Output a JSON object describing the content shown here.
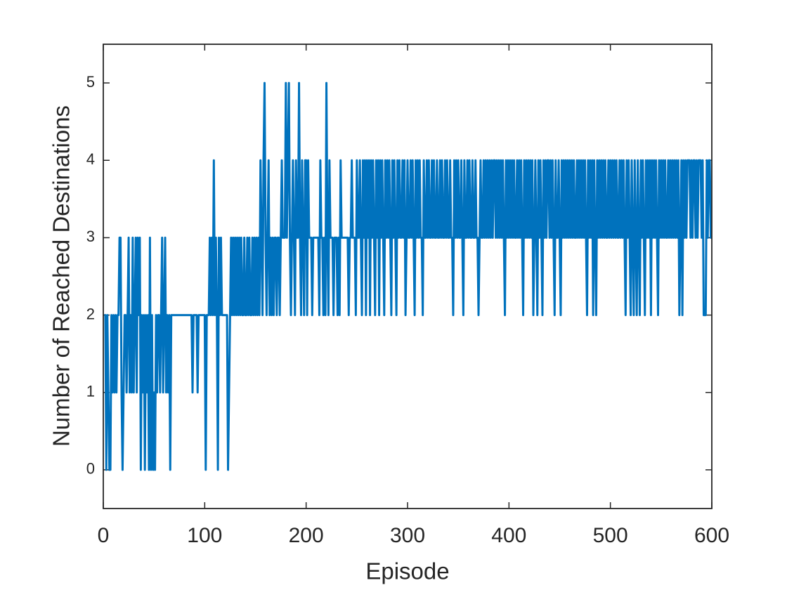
{
  "chart_data": {
    "type": "line",
    "x_label": "Episode",
    "y_label": "Number of Reached Destinations",
    "xlim": [
      0,
      600
    ],
    "xticks": [
      0,
      100,
      200,
      300,
      400,
      500,
      600
    ],
    "ylim": [
      -0.5,
      5.5
    ],
    "yticks": [
      0,
      1,
      2,
      3,
      4,
      5
    ],
    "grid": false,
    "box": true,
    "series": [
      {
        "color": "#0072bd",
        "x": [
          1,
          2,
          3,
          4,
          5,
          6,
          7,
          8,
          9,
          10,
          11,
          12,
          13,
          14,
          15,
          16,
          17,
          18,
          19,
          20,
          21,
          22,
          23,
          24,
          25,
          26,
          27,
          28,
          29,
          30,
          31,
          32,
          33,
          34,
          35,
          36,
          37,
          38,
          39,
          40,
          41,
          42,
          43,
          44,
          45,
          46,
          47,
          48,
          49,
          50,
          51,
          52,
          53,
          54,
          55,
          56,
          57,
          58,
          59,
          60,
          61,
          62,
          63,
          64,
          65,
          66,
          67,
          68,
          69,
          70,
          71,
          72,
          73,
          74,
          75,
          76,
          77,
          78,
          79,
          80,
          81,
          82,
          83,
          84,
          85,
          86,
          87,
          88,
          89,
          90,
          91,
          92,
          93,
          94,
          95,
          96,
          97,
          98,
          99,
          100,
          101,
          102,
          103,
          104,
          105,
          106,
          107,
          108,
          109,
          110,
          111,
          112,
          113,
          114,
          115,
          116,
          117,
          118,
          119,
          120,
          121,
          122,
          123,
          124,
          125,
          126,
          127,
          128,
          129,
          130,
          131,
          132,
          133,
          134,
          135,
          136,
          137,
          138,
          139,
          140,
          141,
          142,
          143,
          144,
          145,
          146,
          147,
          148,
          149,
          150,
          151,
          152,
          153,
          154,
          155,
          156,
          157,
          158,
          159,
          160,
          161,
          162,
          163,
          164,
          165,
          166,
          167,
          168,
          169,
          170,
          171,
          172,
          173,
          174,
          175,
          176,
          177,
          178,
          179,
          180,
          181,
          182,
          183,
          184,
          185,
          186,
          187,
          188,
          189,
          190,
          191,
          192,
          193,
          194,
          195,
          196,
          197,
          198,
          199,
          200,
          201,
          202,
          203,
          204,
          205,
          206,
          207,
          208,
          209,
          210,
          211,
          212,
          213,
          214,
          215,
          216,
          217,
          218,
          219,
          220,
          221,
          222,
          223,
          224,
          225,
          226,
          227,
          228,
          229,
          230,
          231,
          232,
          233,
          234,
          235,
          236,
          237,
          238,
          239,
          240,
          241,
          242,
          243,
          244,
          245,
          246,
          247,
          248,
          249,
          250,
          251,
          252,
          253,
          254,
          255,
          256,
          257,
          258,
          259,
          260,
          261,
          262,
          263,
          264,
          265,
          266,
          267,
          268,
          269,
          270,
          271,
          272,
          273,
          274,
          275,
          276,
          277,
          278,
          279,
          280,
          281,
          282,
          283,
          284,
          285,
          286,
          287,
          288,
          289,
          290,
          291,
          292,
          293,
          294,
          295,
          296,
          297,
          298,
          299,
          300,
          301,
          302,
          303,
          304,
          305,
          306,
          307,
          308,
          309,
          310,
          311,
          312,
          313,
          314,
          315,
          316,
          317,
          318,
          319,
          320,
          321,
          322,
          323,
          324,
          325,
          326,
          327,
          328,
          329,
          330,
          331,
          332,
          333,
          334,
          335,
          336,
          337,
          338,
          339,
          340,
          341,
          342,
          343,
          344,
          345,
          346,
          347,
          348,
          349,
          350,
          351,
          352,
          353,
          354,
          355,
          356,
          357,
          358,
          359,
          360,
          361,
          362,
          363,
          364,
          365,
          366,
          367,
          368,
          369,
          370,
          371,
          372,
          373,
          374,
          375,
          376,
          377,
          378,
          379,
          380,
          381,
          382,
          383,
          384,
          385,
          386,
          387,
          388,
          389,
          390,
          391,
          392,
          393,
          394,
          395,
          396,
          397,
          398,
          399,
          400,
          401,
          402,
          403,
          404,
          405,
          406,
          407,
          408,
          409,
          410,
          411,
          412,
          413,
          414,
          415,
          416,
          417,
          418,
          419,
          420,
          421,
          422,
          423,
          424,
          425,
          426,
          427,
          428,
          429,
          430,
          431,
          432,
          433,
          434,
          435,
          436,
          437,
          438,
          439,
          440,
          441,
          442,
          443,
          444,
          445,
          446,
          447,
          448,
          449,
          450,
          451,
          452,
          453,
          454,
          455,
          456,
          457,
          458,
          459,
          460,
          461,
          462,
          463,
          464,
          465,
          466,
          467,
          468,
          469,
          470,
          471,
          472,
          473,
          474,
          475,
          476,
          477,
          478,
          479,
          480,
          481,
          482,
          483,
          484,
          485,
          486,
          487,
          488,
          489,
          490,
          491,
          492,
          493,
          494,
          495,
          496,
          497,
          498,
          499,
          500,
          501,
          502,
          503,
          504,
          505,
          506,
          507,
          508,
          509,
          510,
          511,
          512,
          513,
          514,
          515,
          516,
          517,
          518,
          519,
          520,
          521,
          522,
          523,
          524,
          525,
          526,
          527,
          528,
          529,
          530,
          531,
          532,
          533,
          534,
          535,
          536,
          537,
          538,
          539,
          540,
          541,
          542,
          543,
          544,
          545,
          546,
          547,
          548,
          549,
          550,
          551,
          552,
          553,
          554,
          555,
          556,
          557,
          558,
          559,
          560,
          561,
          562,
          563,
          564,
          565,
          566,
          567,
          568,
          569,
          570,
          571,
          572,
          573,
          574,
          575,
          576,
          577,
          578,
          579,
          580,
          581,
          582,
          583,
          584,
          585,
          586,
          587,
          588,
          589,
          590,
          591,
          592,
          593,
          594,
          595,
          596,
          597,
          598,
          599,
          600
        ],
        "values": [
          2,
          2,
          0,
          2,
          1,
          0,
          0,
          2,
          1,
          2,
          1,
          2,
          1,
          2,
          2,
          3,
          3,
          1,
          0,
          1,
          2,
          2,
          1,
          2,
          3,
          1,
          2,
          1,
          3,
          1,
          2,
          3,
          1,
          3,
          2,
          3,
          0,
          2,
          1,
          2,
          0,
          2,
          1,
          2,
          0,
          3,
          0,
          2,
          0,
          1,
          0,
          2,
          1,
          2,
          2,
          1,
          2,
          3,
          1,
          2,
          3,
          1,
          2,
          1,
          2,
          0,
          2,
          2,
          2,
          2,
          2,
          2,
          2,
          2,
          2,
          2,
          2,
          2,
          2,
          2,
          2,
          2,
          2,
          2,
          2,
          2,
          2,
          1,
          2,
          2,
          2,
          2,
          1,
          2,
          2,
          2,
          2,
          2,
          2,
          2,
          0,
          2,
          2,
          2,
          3,
          2,
          3,
          2,
          4,
          2,
          3,
          2,
          0,
          3,
          2,
          3,
          2,
          2,
          2,
          2,
          2,
          2,
          0,
          1,
          2,
          3,
          2,
          3,
          2,
          3,
          2,
          3,
          2,
          3,
          2,
          3,
          2,
          2,
          3,
          2,
          2,
          3,
          2,
          3,
          2,
          2,
          3,
          2,
          3,
          2,
          3,
          2,
          3,
          2,
          4,
          3,
          2,
          4,
          5,
          3,
          2,
          3,
          4,
          2,
          3,
          2,
          3,
          2,
          3,
          3,
          2,
          3,
          3,
          2,
          3,
          4,
          3,
          3,
          3,
          5,
          3,
          4,
          5,
          3,
          2,
          3,
          4,
          3,
          2,
          4,
          3,
          3,
          5,
          3,
          2,
          4,
          3,
          2,
          4,
          4,
          2,
          4,
          3,
          3,
          3,
          2,
          3,
          3,
          3,
          3,
          3,
          3,
          2,
          4,
          3,
          3,
          2,
          3,
          2,
          5,
          3,
          2,
          4,
          3,
          3,
          3,
          2,
          3,
          3,
          3,
          2,
          3,
          2,
          4,
          3,
          3,
          3,
          3,
          3,
          3,
          3,
          2,
          3,
          3,
          4,
          3,
          3,
          3,
          2,
          4,
          3,
          3,
          4,
          3,
          2,
          4,
          3,
          4,
          2,
          4,
          3,
          4,
          2,
          4,
          3,
          4,
          3,
          2,
          4,
          3,
          4,
          2,
          4,
          3,
          4,
          3,
          2,
          4,
          3,
          4,
          3,
          4,
          3,
          2,
          4,
          3,
          4,
          3,
          2,
          4,
          3,
          4,
          3,
          3,
          4,
          3,
          4,
          2,
          3,
          4,
          3,
          3,
          4,
          3,
          4,
          3,
          2,
          4,
          3,
          4,
          3,
          4,
          3,
          3,
          2,
          4,
          3,
          3,
          4,
          3,
          4,
          3,
          3,
          4,
          3,
          4,
          3,
          3,
          4,
          3,
          3,
          4,
          3,
          4,
          3,
          3,
          4,
          3,
          4,
          3,
          3,
          4,
          3,
          3,
          2,
          4,
          3,
          4,
          3,
          4,
          3,
          3,
          4,
          3,
          2,
          4,
          3,
          3,
          4,
          3,
          4,
          3,
          3,
          4,
          3,
          3,
          4,
          3,
          3,
          2,
          3,
          4,
          3,
          3,
          4,
          3,
          4,
          3,
          4,
          3,
          4,
          3,
          4,
          3,
          4,
          4,
          3,
          4,
          3,
          4,
          3,
          4,
          3,
          4,
          3,
          2,
          4,
          3,
          4,
          3,
          4,
          3,
          4,
          3,
          4,
          3,
          3,
          4,
          3,
          4,
          3,
          4,
          3,
          2,
          4,
          3,
          4,
          3,
          4,
          3,
          4,
          3,
          4,
          2,
          3,
          4,
          3,
          2,
          4,
          3,
          4,
          3,
          2,
          4,
          3,
          4,
          3,
          4,
          4,
          3,
          4,
          3,
          4,
          3,
          2,
          4,
          3,
          3,
          4,
          3,
          2,
          4,
          3,
          4,
          3,
          4,
          3,
          4,
          3,
          4,
          3,
          4,
          3,
          4,
          3,
          3,
          4,
          3,
          4,
          3,
          4,
          3,
          4,
          3,
          4,
          3,
          2,
          4,
          3,
          4,
          3,
          4,
          2,
          4,
          3,
          2,
          4,
          3,
          4,
          3,
          4,
          3,
          4,
          3,
          4,
          3,
          3,
          4,
          3,
          4,
          3,
          4,
          3,
          4,
          3,
          4,
          3,
          3,
          4,
          3,
          4,
          3,
          4,
          3,
          2,
          4,
          3,
          4,
          3,
          2,
          4,
          3,
          2,
          4,
          3,
          2,
          4,
          3,
          2,
          4,
          3,
          4,
          3,
          2,
          4,
          3,
          4,
          3,
          4,
          2,
          4,
          3,
          4,
          3,
          4,
          3,
          2,
          4,
          3,
          4,
          3,
          4,
          3,
          4,
          3,
          3,
          4,
          3,
          4,
          3,
          4,
          3,
          4,
          3,
          4,
          3,
          4,
          2,
          3,
          4,
          2,
          4,
          3,
          4,
          3,
          4,
          4,
          4,
          3,
          4,
          3,
          4,
          4,
          3,
          4,
          3,
          4,
          4,
          4,
          3,
          4,
          2,
          2,
          2,
          4,
          3,
          4,
          4,
          3,
          3
        ]
      }
    ]
  }
}
